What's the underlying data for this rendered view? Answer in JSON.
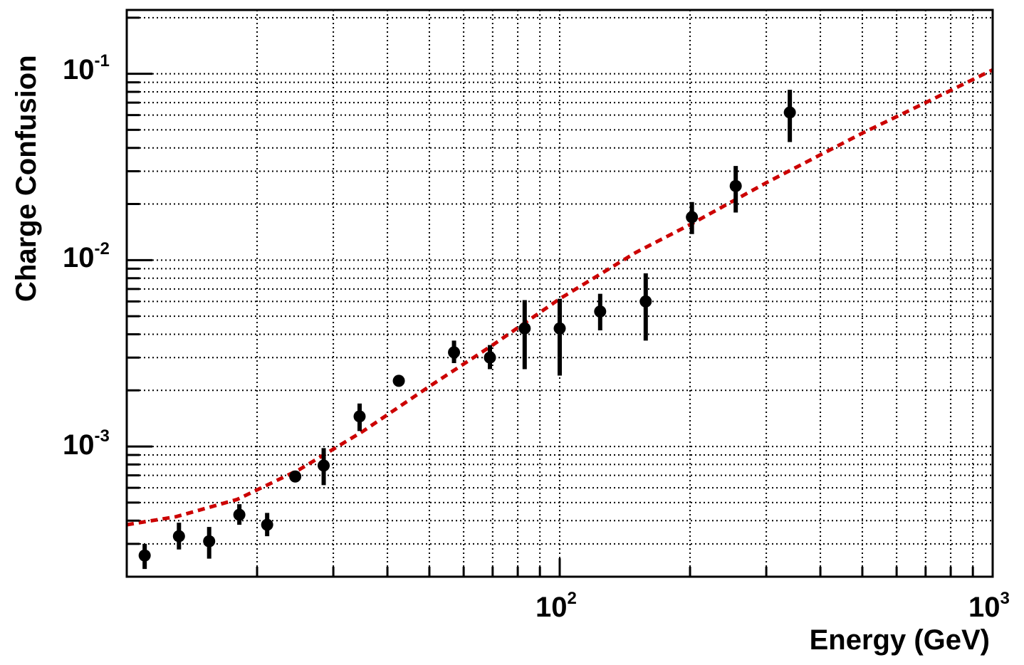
{
  "chart_data": {
    "type": "scatter",
    "title": "",
    "xlabel": "Energy (GeV)",
    "ylabel": "Charge Confusion",
    "xscale": "log",
    "yscale": "log",
    "xlim": [
      10,
      1000
    ],
    "ylim": [
      0.0002,
      0.22
    ],
    "grid": true,
    "x_ticks": [
      {
        "base": "10",
        "exp": "2",
        "value": 100
      },
      {
        "base": "10",
        "exp": "3",
        "value": 1000
      }
    ],
    "y_ticks": [
      {
        "base": "10",
        "exp": "-3",
        "value": 0.001
      },
      {
        "base": "10",
        "exp": "-2",
        "value": 0.01
      },
      {
        "base": "10",
        "exp": "-1",
        "value": 0.1
      }
    ],
    "colors": {
      "points": "#000000",
      "fit": "#cc0000"
    },
    "series": [
      {
        "kind": "points-with-errors",
        "x": [
          11,
          13.2,
          15.5,
          18.2,
          21.1,
          24.5,
          28.5,
          34.5,
          42.5,
          57,
          69,
          83,
          100,
          124,
          158,
          202,
          255,
          340
        ],
        "y": [
          0.00026,
          0.00033,
          0.00031,
          0.00043,
          0.00038,
          0.00069,
          0.00079,
          0.00145,
          0.00225,
          0.0032,
          0.003,
          0.0043,
          0.0043,
          0.0053,
          0.006,
          0.017,
          0.025,
          0.062
        ],
        "err_low": [
          0.00022,
          0.00028,
          0.00025,
          0.00038,
          0.00033,
          0.00066,
          0.00062,
          0.00121,
          0.00215,
          0.0028,
          0.0026,
          0.0026,
          0.0024,
          0.0042,
          0.0037,
          0.0138,
          0.018,
          0.043
        ],
        "err_high": [
          0.0003,
          0.00039,
          0.00037,
          0.00049,
          0.00044,
          0.00073,
          0.00098,
          0.0017,
          0.00235,
          0.0037,
          0.0035,
          0.0061,
          0.0062,
          0.0066,
          0.0085,
          0.0205,
          0.032,
          0.082
        ]
      },
      {
        "kind": "dashed-curve",
        "x": [
          10,
          13,
          18,
          25,
          35,
          50,
          70,
          100,
          150,
          200,
          300,
          500,
          700,
          1000
        ],
        "y": [
          0.00038,
          0.00042,
          0.00052,
          0.00075,
          0.0012,
          0.0021,
          0.0035,
          0.0062,
          0.011,
          0.0155,
          0.026,
          0.048,
          0.07,
          0.105
        ]
      }
    ]
  }
}
